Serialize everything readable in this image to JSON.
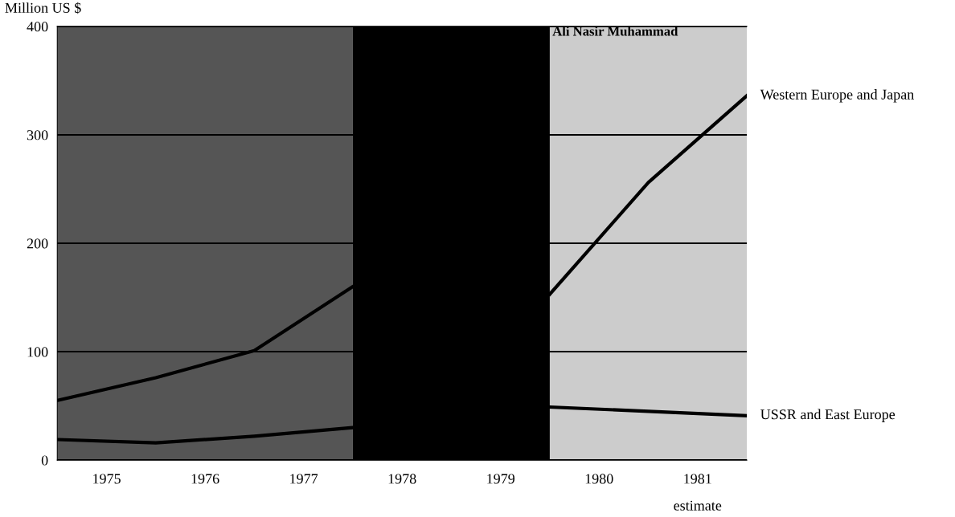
{
  "chart_data": {
    "type": "line",
    "ylabel": "Million US $",
    "xlim": [
      1974.5,
      1981.5
    ],
    "xticks": [
      1975,
      1976,
      1977,
      1978,
      1979,
      1980,
      1981
    ],
    "ylim": [
      0,
      400
    ],
    "yticks": [
      0,
      100,
      200,
      300,
      400
    ],
    "grid": "y",
    "series": [
      {
        "name": "Western Europe and Japan",
        "color": "#000000",
        "x": [
          1974.5,
          1975.5,
          1976.5,
          1977.5,
          1978.5,
          1979.5,
          1980.5,
          1981.5
        ],
        "values": [
          55,
          76,
          101,
          160,
          null,
          153,
          256,
          336
        ]
      },
      {
        "name": "USSR and East Europe",
        "color": "#000000",
        "x": [
          1974.5,
          1975.5,
          1976.5,
          1977.5,
          1978.5,
          1979.5,
          1980.5,
          1981.5
        ],
        "values": [
          19,
          16,
          22,
          30,
          null,
          49,
          45,
          41
        ]
      }
    ],
    "bands": [
      {
        "axis": "x",
        "from": 1974.5,
        "to": 1977.5,
        "color": "#555555"
      },
      {
        "axis": "x",
        "from": 1977.5,
        "to": 1979.5,
        "color": "#000000"
      },
      {
        "axis": "x",
        "from": 1979.5,
        "to": 1981.5,
        "color": "#cccccc",
        "label": "Ali Nasir Muhammad"
      }
    ],
    "annotations": [
      "estimate"
    ]
  }
}
